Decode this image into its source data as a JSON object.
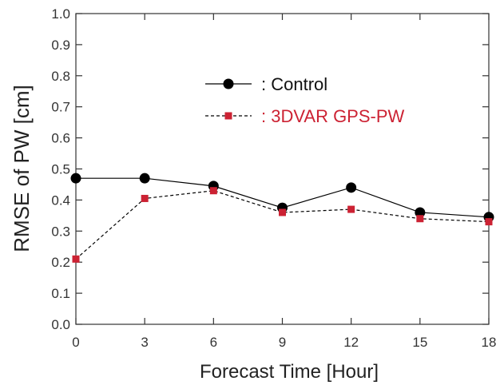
{
  "chart_data": {
    "type": "line",
    "title": "",
    "xlabel": "Forecast Time [Hour]",
    "ylabel": "RMSE of PW [cm]",
    "xlim": [
      0,
      18
    ],
    "ylim": [
      0,
      1.0
    ],
    "x": [
      0,
      3,
      6,
      9,
      12,
      15,
      18
    ],
    "xticks": [
      "0",
      "3",
      "6",
      "9",
      "12",
      "15",
      "18"
    ],
    "yticks": [
      "0.0",
      "0.1",
      "0.2",
      "0.3",
      "0.4",
      "0.5",
      "0.6",
      "0.7",
      "0.8",
      "0.9",
      "1.0"
    ],
    "grid": false,
    "legend_position": "upper-center",
    "series": [
      {
        "name": ": Control",
        "values": [
          0.47,
          0.47,
          0.445,
          0.375,
          0.44,
          0.36,
          0.345
        ],
        "color": "#000000",
        "line_style": "solid",
        "marker": "circle"
      },
      {
        "name": ": 3DVAR GPS-PW",
        "values": [
          0.21,
          0.405,
          0.43,
          0.36,
          0.37,
          0.34,
          0.33
        ],
        "color": "#cc2233",
        "line_color": "#000000",
        "line_style": "dashed",
        "marker": "square"
      }
    ]
  }
}
